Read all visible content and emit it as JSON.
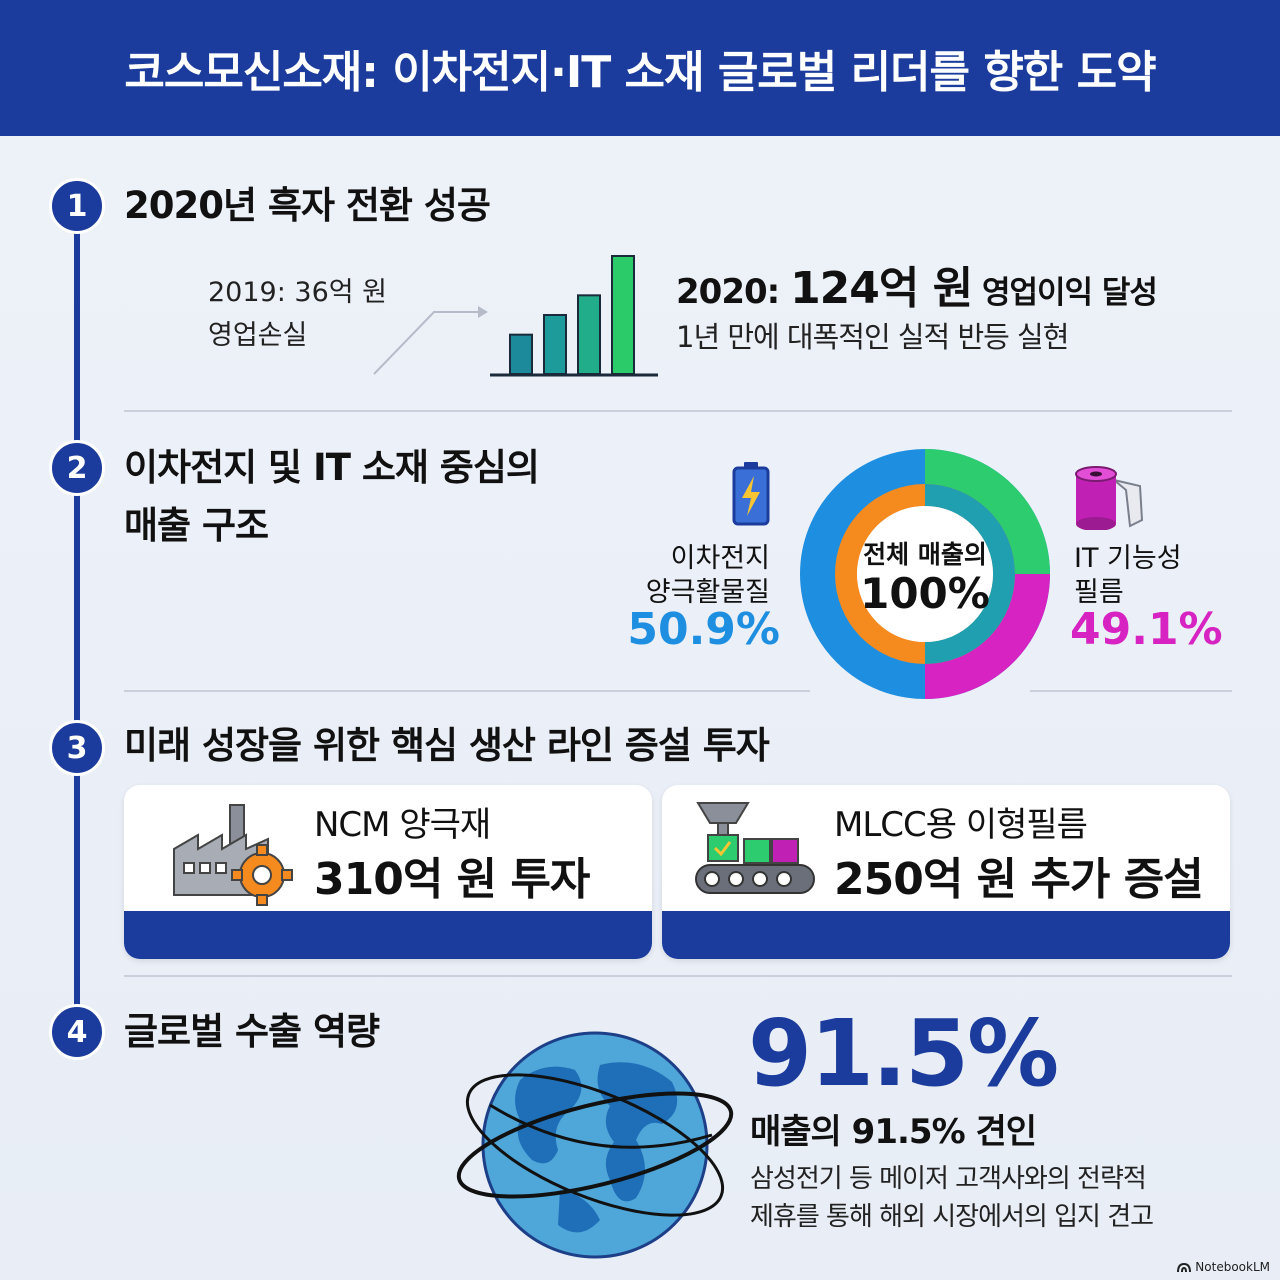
{
  "header": {
    "title": "코스모신소재: 이차전지·IT 소재 글로벌 리더를 향한 도약"
  },
  "sections": [
    {
      "number": "1",
      "title": "2020년 흑자 전환 성공",
      "before_line1": "2019: 36억 원",
      "before_line2": "영업손실",
      "headline_prefix": "2020: ",
      "headline_value": "124억 원",
      "headline_suffix": " 영업이익 달성",
      "subtext": "1년 만에 대폭적인 실적 반등 실현",
      "bar_chart": {
        "values": [
          2,
          3,
          4,
          6
        ],
        "colors": [
          "#1c8a9a",
          "#1d9a9a",
          "#22ad8a",
          "#2bcb6a"
        ]
      }
    },
    {
      "number": "2",
      "title_line1": "이차전지 및 IT 소재 중심의",
      "title_line2": "매출 구조",
      "center_line1": "전체 매출의",
      "center_line2": "100%",
      "left_label_line1": "이차전지",
      "left_label_line2": "양극활물질",
      "left_value": "50.9%",
      "right_label_line1": "IT 기능성",
      "right_label_line2": "필름",
      "right_value": "49.1%",
      "colors": {
        "battery": "#1e8fe0",
        "film": "#d623c2",
        "outer_green": "#2dcc6f",
        "inner_orange": "#f58a1f",
        "inner_teal": "#1f9fb0"
      }
    },
    {
      "number": "3",
      "title": "미래 성장을 위한 핵심 생산 라인 증설 투자",
      "cards": [
        {
          "label": "NCM 양극재",
          "value": "310억 원 투자",
          "icon": "factory-gear-icon"
        },
        {
          "label": "MLCC용 이형필름",
          "value": "250억 원 추가 증설",
          "icon": "conveyor-icon"
        }
      ]
    },
    {
      "number": "4",
      "title": "글로벌 수출 역량",
      "big_value": "91.5%",
      "value_caption": "매출의 91.5% 견인",
      "desc_line1": "삼성전기 등 메이저 고객사와의 전략적",
      "desc_line2": "제휴를 통해 해외 시장에서의 입지 견고",
      "icon": "globe-icon"
    }
  ],
  "footer": {
    "brand": "NotebookLM"
  },
  "colors": {
    "primary": "#1b3c9c",
    "blue_value": "#1e8fe0",
    "magenta_value": "#d623c2",
    "big_value": "#1b3c9c"
  }
}
